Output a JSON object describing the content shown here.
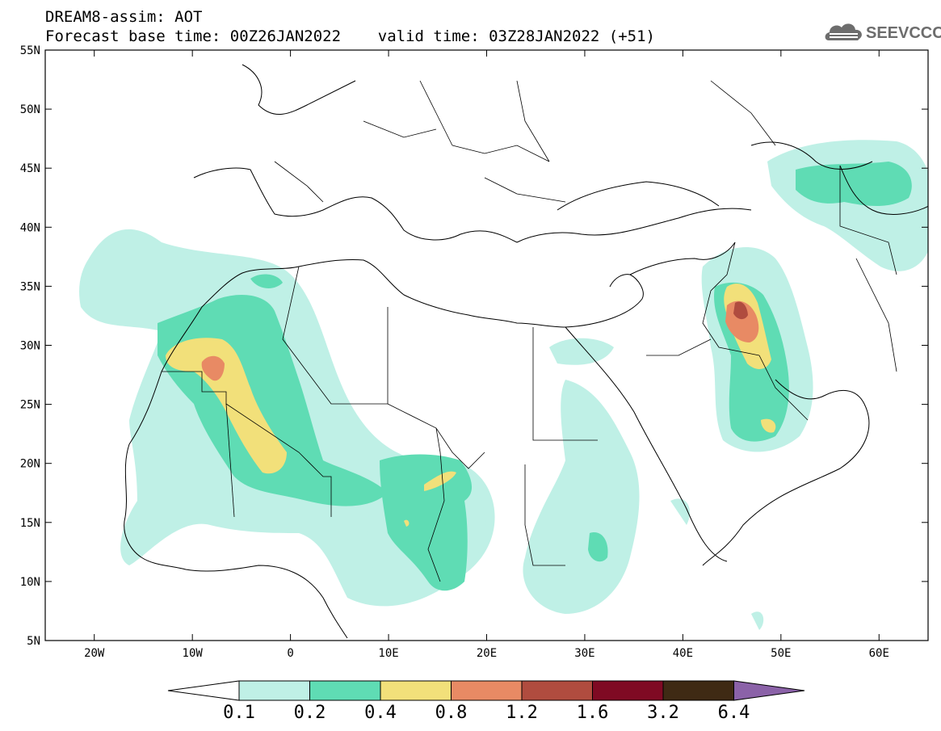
{
  "title": {
    "line1": "DREAM8-assim: AOT",
    "line2": "Forecast base time: 00Z26JAN2022    valid time: 03Z28JAN2022 (+51)"
  },
  "logo": {
    "text": "SEEVCCC",
    "icon": "cloud-icon"
  },
  "map": {
    "lon_range": [
      -25,
      65
    ],
    "lat_range": [
      5,
      55
    ],
    "lat_ticks": [
      "55N",
      "50N",
      "45N",
      "40N",
      "35N",
      "30N",
      "25N",
      "20N",
      "15N",
      "10N",
      "5N"
    ],
    "lon_ticks": [
      "20W",
      "10W",
      "0",
      "10E",
      "20E",
      "30E",
      "40E",
      "50E",
      "60E"
    ]
  },
  "colorbar": {
    "labels": [
      "0.1",
      "0.2",
      "0.4",
      "0.8",
      "1.2",
      "1.6",
      "3.2",
      "6.4"
    ],
    "colors": [
      "#bff0e6",
      "#5fdcb4",
      "#f2e07a",
      "#e88a64",
      "#b04c3f",
      "#7f0a23",
      "#3f2a14"
    ],
    "under_color": "#ffffff",
    "over_color": "#8b62a8"
  }
}
